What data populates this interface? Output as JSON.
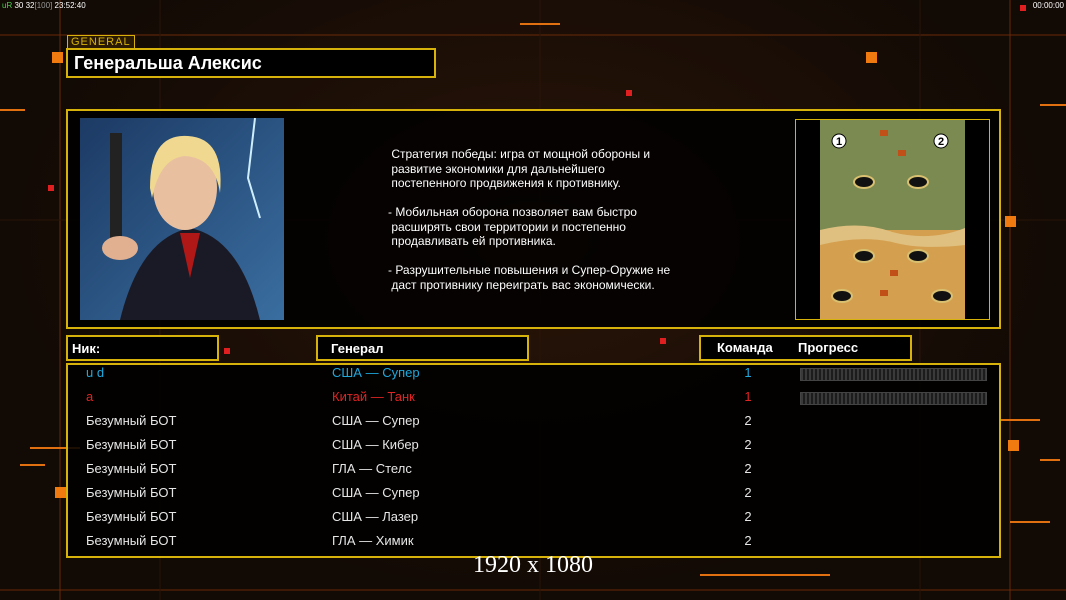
{
  "status_bar": {
    "tag": "uR",
    "fps": "30 32",
    "limit": "[100]",
    "clock": "23:52:40",
    "timer": "00:00:00"
  },
  "header": {
    "badge": "GENERAL",
    "title": "Генеральша Алексис"
  },
  "description": [
    [
      " Стратегия победы: игра от мощной обороны и",
      " развитие экономики для дальнейшего",
      " постепенного продвижения к противнику."
    ],
    [
      "- Мобильная оборона позволяет вам быстро",
      " расширять свои территории и постепенно",
      " продавливать ей противника."
    ],
    [
      "- Разрушительные повышения и Супер-Оружие не",
      " даст противнику переиграть вас экономически."
    ]
  ],
  "map": {
    "start_labels": [
      "1",
      "2"
    ]
  },
  "table": {
    "columns": [
      "Ник:",
      "Генерал",
      "Команда",
      "Прогресс"
    ],
    "rows": [
      {
        "name": "u d",
        "general": "США — Супер",
        "team": 1,
        "color": "#1fa8dc",
        "progress": true
      },
      {
        "name": "a",
        "general": "Китай — Танк",
        "team": 1,
        "color": "#e02424",
        "progress": true
      },
      {
        "name": "Безумный БОТ",
        "general": "США — Супер",
        "team": 2,
        "color": "#e6e6e6",
        "progress": false
      },
      {
        "name": "Безумный БОТ",
        "general": "США — Кибер",
        "team": 2,
        "color": "#e6e6e6",
        "progress": false
      },
      {
        "name": "Безумный БОТ",
        "general": "ГЛА — Стелс",
        "team": 2,
        "color": "#e6e6e6",
        "progress": false
      },
      {
        "name": "Безумный БОТ",
        "general": "США — Супер",
        "team": 2,
        "color": "#e6e6e6",
        "progress": false
      },
      {
        "name": "Безумный БОТ",
        "general": "США — Лазер",
        "team": 2,
        "color": "#e6e6e6",
        "progress": false
      },
      {
        "name": "Безумный БОТ",
        "general": "ГЛА — Химик",
        "team": 2,
        "color": "#e6e6e6",
        "progress": false
      }
    ]
  },
  "footer": {
    "resolution": "1920 x 1080"
  }
}
